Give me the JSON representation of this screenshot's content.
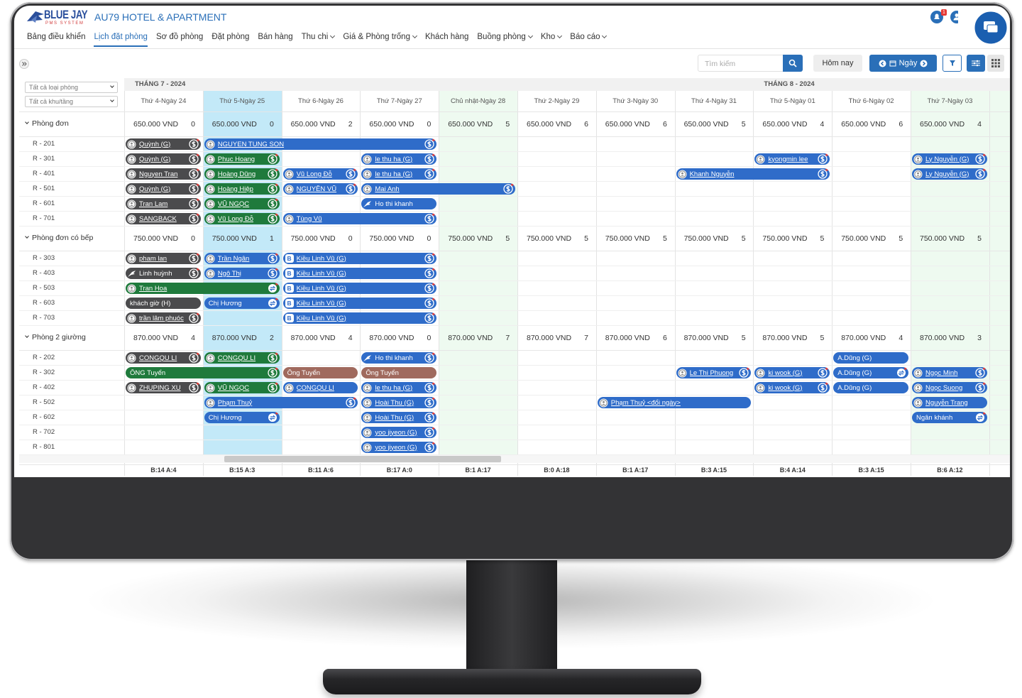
{
  "header": {
    "brand": "BLUE JAY",
    "brand_sub": "PMS SYSTEM",
    "hotel": "AU79 HOTEL & APARTMENT",
    "notification_count": "1"
  },
  "nav": [
    {
      "label": "Bảng điều khiển"
    },
    {
      "label": "Lịch đặt phòng",
      "active": true
    },
    {
      "label": "Sơ đồ phòng"
    },
    {
      "label": "Đặt phòng"
    },
    {
      "label": "Bán hàng"
    },
    {
      "label": "Thu chi",
      "dropdown": true
    },
    {
      "label": "Giá & Phòng trống",
      "dropdown": true
    },
    {
      "label": "Khách hàng"
    },
    {
      "label": "Buồng phòng",
      "dropdown": true
    },
    {
      "label": "Kho",
      "dropdown": true
    },
    {
      "label": "Báo cáo",
      "dropdown": true
    }
  ],
  "toolbar": {
    "search_placeholder": "Tìm kiếm",
    "today": "Hôm nay",
    "view": "Ngày"
  },
  "filters": [
    "Tất cả loại phòng",
    "Tất cả khu/tầng"
  ],
  "calendar": {
    "months": [
      {
        "label": "THÁNG 7 - 2024",
        "start": 0
      },
      {
        "label": "THÁNG 8 - 2024",
        "start": 8
      }
    ],
    "days": [
      {
        "label": "Thứ 4-Ngày 24"
      },
      {
        "label": "Thứ 5-Ngày 25",
        "today": true
      },
      {
        "label": "Thứ 6-Ngày 26"
      },
      {
        "label": "Thứ 7-Ngày 27"
      },
      {
        "label": "Chủ nhật-Ngày 28",
        "weekend": true
      },
      {
        "label": "Thứ 2-Ngày 29"
      },
      {
        "label": "Thứ 3-Ngày 30"
      },
      {
        "label": "Thứ 4-Ngày 31"
      },
      {
        "label": "Thứ 5-Ngày 01"
      },
      {
        "label": "Thứ 6-Ngày 02"
      },
      {
        "label": "Thứ 7-Ngày 03",
        "weekend": true
      }
    ],
    "groups": [
      {
        "name": "Phòng đơn",
        "price": "650.000 VND",
        "counts": [
          0,
          0,
          2,
          0,
          5,
          6,
          6,
          5,
          4,
          6,
          4
        ],
        "rooms": [
          {
            "name": "R - 201",
            "bookings": [
              {
                "guest": "Quỳnh (G)",
                "start": 0,
                "span": 1,
                "color": "#4b4b4d",
                "icon": "guest",
                "pay": "dollar"
              },
              {
                "guest": "NGUYEN TUNG SON",
                "start": 1,
                "span": 3,
                "color": "#2f6cc9",
                "icon": "guest",
                "pay": "dollar"
              }
            ]
          },
          {
            "name": "R - 301",
            "bookings": [
              {
                "guest": "Quỳnh (G)",
                "start": 0,
                "span": 1,
                "color": "#4b4b4d",
                "icon": "guest",
                "pay": "dollar"
              },
              {
                "guest": "Phuc Hoang",
                "start": 1,
                "span": 1,
                "color": "#1f7a3c",
                "icon": "guest",
                "pay": "dollar"
              },
              {
                "guest": "le thu ha (G)",
                "start": 3,
                "span": 1,
                "color": "#2f6cc9",
                "icon": "guest",
                "pay": "dollar"
              },
              {
                "guest": "kyongmin lee",
                "start": 8,
                "span": 1,
                "color": "#2f6cc9",
                "icon": "guest",
                "pay": "dollar"
              },
              {
                "guest": "Ly Nguyễn (G)",
                "start": 10,
                "span": 1,
                "color": "#2f6cc9",
                "icon": "guest",
                "pay": "dollar"
              }
            ]
          },
          {
            "name": "R - 401",
            "bookings": [
              {
                "guest": "Nguyen Tran",
                "start": 0,
                "span": 1,
                "color": "#4b4b4d",
                "icon": "guest",
                "pay": "dollar"
              },
              {
                "guest": "Hoàng Dũng",
                "start": 1,
                "span": 1,
                "color": "#1f7a3c",
                "icon": "guest",
                "pay": "dollar"
              },
              {
                "guest": "Vũ Long Đỗ",
                "start": 2,
                "span": 1,
                "color": "#2f6cc9",
                "icon": "guest",
                "pay": "dollar"
              },
              {
                "guest": "le thu ha (G)",
                "start": 3,
                "span": 1,
                "color": "#2f6cc9",
                "icon": "guest",
                "pay": "dollar"
              },
              {
                "guest": "Khanh Nguyễn",
                "start": 7,
                "span": 2,
                "color": "#2f6cc9",
                "icon": "guest",
                "pay": "dollar"
              },
              {
                "guest": "Ly Nguyễn (G)",
                "start": 10,
                "span": 1,
                "color": "#2f6cc9",
                "icon": "guest",
                "pay": "dollar"
              }
            ]
          },
          {
            "name": "R - 501",
            "bookings": [
              {
                "guest": "Quỳnh (G)",
                "start": 0,
                "span": 1,
                "color": "#4b4b4d",
                "icon": "guest",
                "pay": "dollar"
              },
              {
                "guest": "Hoàng Hiệp",
                "start": 1,
                "span": 1,
                "color": "#1f7a3c",
                "icon": "guest",
                "pay": "dollar"
              },
              {
                "guest": "NGUYÊN VŨ",
                "start": 2,
                "span": 1,
                "color": "#2f6cc9",
                "icon": "guest",
                "pay": "dollar"
              },
              {
                "guest": "Mai Anh",
                "start": 3,
                "span": 2,
                "color": "#2f6cc9",
                "icon": "guest",
                "pay": "dollar"
              }
            ]
          },
          {
            "name": "R - 601",
            "bookings": [
              {
                "guest": "Tran Lam",
                "start": 0,
                "span": 1,
                "color": "#4b4b4d",
                "icon": "guest",
                "pay": "dollar"
              },
              {
                "guest": "VŨ NGỌC",
                "start": 1,
                "span": 1,
                "color": "#1f7a3c",
                "icon": "guest",
                "pay": "dollar"
              },
              {
                "guest": "Ho thi khanh",
                "start": 3,
                "span": 1,
                "color": "#2f6cc9",
                "icon": "bird"
              }
            ]
          },
          {
            "name": "R - 701",
            "bookings": [
              {
                "guest": "SANGBACK",
                "start": 0,
                "span": 1,
                "color": "#4b4b4d",
                "icon": "guest",
                "pay": "dollar"
              },
              {
                "guest": "Vũ Long Đỗ",
                "start": 1,
                "span": 1,
                "color": "#1f7a3c",
                "icon": "guest",
                "pay": "dollar"
              },
              {
                "guest": "Tùng Vũ",
                "start": 2,
                "span": 2,
                "color": "#2f6cc9",
                "icon": "guest",
                "pay": "dollar"
              }
            ]
          }
        ]
      },
      {
        "name": "Phòng đơn có bếp",
        "price": "750.000 VND",
        "counts": [
          0,
          1,
          0,
          0,
          5,
          5,
          5,
          5,
          5,
          5,
          5
        ],
        "rooms": [
          {
            "name": "R - 303",
            "bookings": [
              {
                "guest": "pham lan",
                "start": 0,
                "span": 1,
                "color": "#4b4b4d",
                "icon": "guest",
                "pay": "dollar"
              },
              {
                "guest": "Trần Ngân",
                "start": 1,
                "span": 1,
                "color": "#2f6cc9",
                "icon": "guest",
                "pay": "dollar"
              },
              {
                "guest": "Kiều Linh Vũ (G)",
                "start": 2,
                "span": 2,
                "color": "#2f6cc9",
                "badge": "B",
                "pay": "dollar"
              }
            ]
          },
          {
            "name": "R - 403",
            "bookings": [
              {
                "guest": "Linh huỳnh",
                "start": 0,
                "span": 1,
                "color": "#4b4b4d",
                "icon": "bird",
                "pay": "dollar"
              },
              {
                "guest": "Ngô Thị",
                "start": 1,
                "span": 1,
                "color": "#2f6cc9",
                "icon": "guest",
                "pay": "dollar"
              },
              {
                "guest": "Kiều Linh Vũ (G)",
                "start": 2,
                "span": 2,
                "color": "#2f6cc9",
                "badge": "B",
                "pay": "dollar"
              }
            ]
          },
          {
            "name": "R - 503",
            "bookings": [
              {
                "guest": "Tran Hoa",
                "start": 0,
                "span": 2,
                "color": "#1f7a3c",
                "icon": "guest",
                "pay": "swap"
              },
              {
                "guest": "Kiều Linh Vũ (G)",
                "start": 2,
                "span": 2,
                "color": "#2f6cc9",
                "badge": "B",
                "pay": "dollar"
              }
            ]
          },
          {
            "name": "R - 603",
            "bookings": [
              {
                "guest": "khách giờ (H)",
                "start": 0,
                "span": 1,
                "color": "#4b4b4d"
              },
              {
                "guest": "Chị Hương",
                "start": 1,
                "span": 1,
                "color": "#2f6cc9",
                "pay": "swap"
              },
              {
                "guest": "Kiều Linh Vũ (G)",
                "start": 2,
                "span": 2,
                "color": "#2f6cc9",
                "badge": "B",
                "pay": "dollar"
              }
            ]
          },
          {
            "name": "R - 703",
            "bookings": [
              {
                "guest": "trần lâm phuóc",
                "start": 0,
                "span": 1,
                "color": "#4b4b4d",
                "icon": "guest",
                "pay": "dollar"
              },
              {
                "guest": "Kiều Linh Vũ (G)",
                "start": 2,
                "span": 2,
                "color": "#2f6cc9",
                "badge": "B",
                "pay": "dollar"
              }
            ]
          }
        ]
      },
      {
        "name": "Phòng 2 giường",
        "price": "870.000 VND",
        "counts": [
          4,
          2,
          4,
          0,
          7,
          7,
          6,
          5,
          5,
          4,
          3
        ],
        "rooms": [
          {
            "name": "R - 202",
            "bookings": [
              {
                "guest": "CONGQU LI",
                "start": 0,
                "span": 1,
                "color": "#4b4b4d",
                "icon": "guest",
                "pay": "dollar"
              },
              {
                "guest": "CONGQU LI",
                "start": 1,
                "span": 1,
                "color": "#1f7a3c",
                "icon": "guest",
                "pay": "dollar"
              },
              {
                "guest": "Ho thi khanh",
                "start": 3,
                "span": 1,
                "color": "#2f6cc9",
                "icon": "bird",
                "pay": "dollar"
              },
              {
                "guest": "A.Dũng (G)",
                "start": 9,
                "span": 1,
                "color": "#2f6cc9"
              }
            ]
          },
          {
            "name": "R - 302",
            "bookings": [
              {
                "guest": "ÔNG Tuyển",
                "start": 0,
                "span": 2,
                "color": "#1f7a3c",
                "pay": "dollar"
              },
              {
                "guest": "Ông Tuyển",
                "start": 2,
                "span": 1,
                "color": "#a06a5e"
              },
              {
                "guest": "Ông Tuyển",
                "start": 3,
                "span": 1,
                "color": "#a06a5e"
              },
              {
                "guest": "Le Thi Phuong",
                "start": 7,
                "span": 1,
                "color": "#2f6cc9",
                "icon": "guest",
                "pay": "dollar"
              },
              {
                "guest": "ki wook (G)",
                "start": 8,
                "span": 1,
                "color": "#2f6cc9",
                "icon": "guest",
                "pay": "dollar"
              },
              {
                "guest": "A.Dũng (G)",
                "start": 9,
                "span": 1,
                "color": "#2f6cc9",
                "pay": "swap"
              },
              {
                "guest": "Ngọc Minh",
                "start": 10,
                "span": 1,
                "color": "#2f6cc9",
                "icon": "guest",
                "pay": "dollar"
              }
            ]
          },
          {
            "name": "R - 402",
            "bookings": [
              {
                "guest": "ZHUPING XU",
                "start": 0,
                "span": 1,
                "color": "#4b4b4d",
                "icon": "guest",
                "pay": "dollar"
              },
              {
                "guest": "VŨ NGỌC",
                "start": 1,
                "span": 1,
                "color": "#1f7a3c",
                "icon": "guest",
                "pay": "dollar"
              },
              {
                "guest": "CONGQU LI",
                "start": 2,
                "span": 1,
                "color": "#2f6cc9",
                "icon": "guest"
              },
              {
                "guest": "le thu ha (G)",
                "start": 3,
                "span": 1,
                "color": "#2f6cc9",
                "icon": "guest",
                "pay": "dollar"
              },
              {
                "guest": "ki wook (G)",
                "start": 8,
                "span": 1,
                "color": "#2f6cc9",
                "icon": "guest",
                "pay": "dollar"
              },
              {
                "guest": "A.Dũng (G)",
                "start": 9,
                "span": 1,
                "color": "#2f6cc9"
              },
              {
                "guest": "Ngọc Suong",
                "start": 10,
                "span": 1,
                "color": "#2f6cc9",
                "icon": "guest",
                "pay": "dollar"
              }
            ]
          },
          {
            "name": "R - 502",
            "bookings": [
              {
                "guest": "Phạm Thuỷ",
                "start": 1,
                "span": 2,
                "color": "#2f6cc9",
                "icon": "guest",
                "pay": "dollar"
              },
              {
                "guest": "Hoài Thu (G)",
                "start": 3,
                "span": 1,
                "color": "#2f6cc9",
                "icon": "guest",
                "pay": "dollar"
              },
              {
                "guest": "Phạm Thuỷ <đổi ngày>",
                "start": 6,
                "span": 2,
                "color": "#2f6cc9",
                "icon": "guest"
              },
              {
                "guest": "Nguyễn Trang",
                "start": 10,
                "span": 1,
                "color": "#2f6cc9",
                "icon": "guest"
              }
            ]
          },
          {
            "name": "R - 602",
            "bookings": [
              {
                "guest": "Chị Hương",
                "start": 1,
                "span": 1,
                "color": "#2f6cc9",
                "pay": "swap"
              },
              {
                "guest": "Hoài Thu (G)",
                "start": 3,
                "span": 1,
                "color": "#2f6cc9",
                "icon": "guest",
                "pay": "dollar"
              },
              {
                "guest": "Ngân khánh",
                "start": 10,
                "span": 1,
                "color": "#2f6cc9",
                "pay": "swap"
              }
            ]
          },
          {
            "name": "R - 702",
            "bookings": [
              {
                "guest": "yoo jiyeon (G)",
                "start": 3,
                "span": 1,
                "color": "#2f6cc9",
                "icon": "guest",
                "pay": "dollar"
              }
            ]
          },
          {
            "name": "R - 801",
            "bookings": [
              {
                "guest": "yoo jiyeon (G)",
                "start": 3,
                "span": 1,
                "color": "#2f6cc9",
                "icon": "guest",
                "pay": "dollar"
              }
            ]
          }
        ]
      }
    ],
    "footer": [
      "B:14 A:4",
      "B:15 A:3",
      "B:11 A:6",
      "B:17 A:0",
      "B:1 A:17",
      "B:0 A:18",
      "B:1 A:17",
      "B:3 A:15",
      "B:4 A:14",
      "B:3 A:15",
      "B:6 A:12"
    ]
  }
}
